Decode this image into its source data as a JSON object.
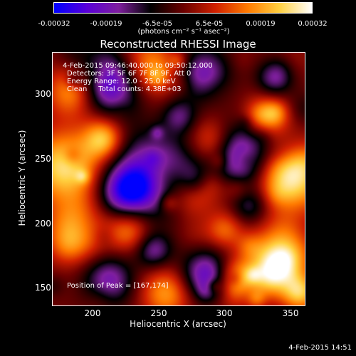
{
  "colorbar": {
    "ticks": [
      "-0.00032",
      "-0.00019",
      "-6.5e-05",
      "6.5e-05",
      "0.00019",
      "0.00032"
    ],
    "units": "(photons cm⁻² s⁻¹ asec⁻²)",
    "colors": [
      "#0000ff",
      "#5a00d8",
      "#7f1f9e",
      "#000000",
      "#6a0000",
      "#d02000",
      "#ff7a00",
      "#ffd040",
      "#ffffff"
    ]
  },
  "chart_data": {
    "type": "heatmap",
    "title": "Reconstructed RHESSI Image",
    "xlabel": "Heliocentric X (arcsec)",
    "ylabel": "Heliocentric Y (arcsec)",
    "xlim": [
      167,
      362
    ],
    "ylim": [
      140,
      335
    ],
    "xticks": [
      "200",
      "250",
      "300",
      "350"
    ],
    "yticks": [
      "150",
      "200",
      "250",
      "300"
    ],
    "zrange": [
      -0.00032,
      0.00032
    ],
    "peak": [
      167,
      174
    ]
  },
  "annotations": {
    "time": "4-Feb-2015 09:46:40.000 to 09:50:12.000",
    "detectors": "Detectors: 3F 5F 6F 7F 8F 9F, Att 0",
    "energy": "Energy Range: 12.0 - 25.0 keV",
    "method": "Clean     Total counts: 4.38E+03",
    "peak": "Position of Peak = [167,174]"
  },
  "footer": {
    "date": "4-Feb-2015 14:51"
  }
}
